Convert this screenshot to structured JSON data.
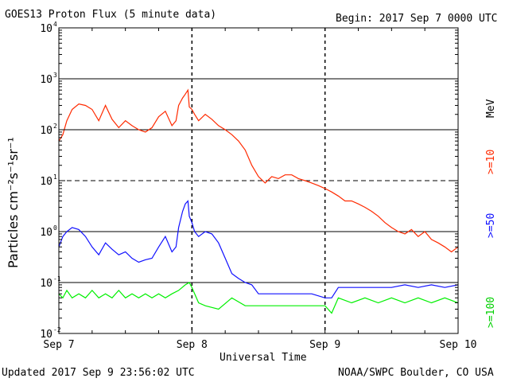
{
  "header": {
    "title": "GOES13 Proton Flux (5 minute data)",
    "begin": "Begin: 2017 Sep 7 0000 UTC"
  },
  "footer": {
    "updated": "Updated 2017 Sep  9 23:56:02 UTC",
    "source": "NOAA/SWPC Boulder, CO USA"
  },
  "chart_data": {
    "type": "line",
    "title": "GOES13 Proton Flux (5 minute data)",
    "xlabel": "Universal Time",
    "ylabel": "Particles cm⁻²s⁻¹sr⁻¹",
    "y_scale": "log",
    "ylim": [
      0.01,
      10000
    ],
    "xlim": [
      0,
      3
    ],
    "x_ticks": [
      {
        "value": 0,
        "label": "Sep 7"
      },
      {
        "value": 1,
        "label": "Sep 8"
      },
      {
        "value": 2,
        "label": "Sep 9"
      },
      {
        "value": 3,
        "label": "Sep 10"
      }
    ],
    "y_ticks": [
      {
        "value": 0.01,
        "base": "10",
        "exp": "-2"
      },
      {
        "value": 0.1,
        "base": "10",
        "exp": "-1"
      },
      {
        "value": 1,
        "base": "10",
        "exp": "0"
      },
      {
        "value": 10,
        "base": "10",
        "exp": "1"
      },
      {
        "value": 100,
        "base": "10",
        "exp": "2"
      },
      {
        "value": 1000,
        "base": "10",
        "exp": "3"
      },
      {
        "value": 10000,
        "base": "10",
        "exp": "4"
      }
    ],
    "reference_lines": [
      {
        "value": 1000,
        "style": "solid"
      },
      {
        "value": 100,
        "style": "solid"
      },
      {
        "value": 10,
        "style": "dashed"
      },
      {
        "value": 1,
        "style": "solid"
      },
      {
        "value": 0.1,
        "style": "solid"
      }
    ],
    "series": [
      {
        "name": ">=10",
        "color": "#ff2a00",
        "x": [
          0,
          0.03,
          0.06,
          0.1,
          0.15,
          0.2,
          0.25,
          0.3,
          0.35,
          0.4,
          0.45,
          0.5,
          0.55,
          0.6,
          0.65,
          0.7,
          0.75,
          0.8,
          0.85,
          0.88,
          0.9,
          0.93,
          0.95,
          0.97,
          0.98,
          1.0,
          1.02,
          1.05,
          1.1,
          1.15,
          1.2,
          1.25,
          1.3,
          1.35,
          1.4,
          1.45,
          1.5,
          1.55,
          1.6,
          1.65,
          1.7,
          1.75,
          1.8,
          1.85,
          1.9,
          1.95,
          2.0,
          2.05,
          2.1,
          2.15,
          2.2,
          2.25,
          2.3,
          2.35,
          2.4,
          2.45,
          2.5,
          2.55,
          2.6,
          2.65,
          2.7,
          2.75,
          2.8,
          2.85,
          2.9,
          2.95,
          3.0
        ],
        "y": [
          60,
          80,
          150,
          250,
          320,
          300,
          250,
          150,
          300,
          160,
          110,
          150,
          120,
          100,
          90,
          110,
          180,
          230,
          120,
          150,
          300,
          420,
          500,
          600,
          280,
          250,
          200,
          150,
          200,
          160,
          120,
          100,
          80,
          60,
          40,
          20,
          12,
          9,
          12,
          11,
          13,
          13,
          11,
          10,
          9,
          8,
          7,
          6,
          5,
          4,
          4,
          3.5,
          3,
          2.5,
          2,
          1.5,
          1.2,
          1,
          0.9,
          1.1,
          0.8,
          1,
          0.7,
          0.6,
          0.5,
          0.4,
          0.5
        ]
      },
      {
        "name": ">=50",
        "color": "#1010ff",
        "x": [
          0,
          0.03,
          0.06,
          0.1,
          0.15,
          0.2,
          0.25,
          0.3,
          0.35,
          0.4,
          0.45,
          0.5,
          0.55,
          0.6,
          0.65,
          0.7,
          0.75,
          0.8,
          0.85,
          0.88,
          0.9,
          0.93,
          0.95,
          0.97,
          0.98,
          1.0,
          1.02,
          1.05,
          1.1,
          1.15,
          1.2,
          1.25,
          1.3,
          1.35,
          1.4,
          1.45,
          1.5,
          1.6,
          1.7,
          1.8,
          1.9,
          2.0,
          2.05,
          2.1,
          2.2,
          2.3,
          2.4,
          2.5,
          2.6,
          2.7,
          2.8,
          2.9,
          3.0
        ],
        "y": [
          0.5,
          0.8,
          1.0,
          1.2,
          1.1,
          0.8,
          0.5,
          0.35,
          0.6,
          0.45,
          0.35,
          0.4,
          0.3,
          0.25,
          0.28,
          0.3,
          0.5,
          0.8,
          0.4,
          0.5,
          1.2,
          2.5,
          3.5,
          4,
          2,
          1.5,
          1.0,
          0.8,
          1.0,
          0.9,
          0.6,
          0.3,
          0.15,
          0.12,
          0.1,
          0.09,
          0.06,
          0.06,
          0.06,
          0.06,
          0.06,
          0.05,
          0.05,
          0.08,
          0.08,
          0.08,
          0.08,
          0.08,
          0.09,
          0.08,
          0.09,
          0.08,
          0.09
        ]
      },
      {
        "name": ">=100",
        "color": "#00f000",
        "x": [
          0,
          0.03,
          0.06,
          0.1,
          0.15,
          0.2,
          0.25,
          0.3,
          0.35,
          0.4,
          0.45,
          0.5,
          0.55,
          0.6,
          0.65,
          0.7,
          0.75,
          0.8,
          0.85,
          0.9,
          0.95,
          0.98,
          1.0,
          1.05,
          1.1,
          1.2,
          1.3,
          1.4,
          1.5,
          1.6,
          1.7,
          1.8,
          1.9,
          2.0,
          2.05,
          2.1,
          2.2,
          2.3,
          2.4,
          2.5,
          2.6,
          2.7,
          2.8,
          2.9,
          3.0
        ],
        "y": [
          0.06,
          0.05,
          0.07,
          0.05,
          0.06,
          0.05,
          0.07,
          0.05,
          0.06,
          0.05,
          0.07,
          0.05,
          0.06,
          0.05,
          0.06,
          0.05,
          0.06,
          0.05,
          0.06,
          0.07,
          0.09,
          0.1,
          0.08,
          0.04,
          0.035,
          0.03,
          0.05,
          0.035,
          0.035,
          0.035,
          0.035,
          0.035,
          0.035,
          0.035,
          0.025,
          0.05,
          0.04,
          0.05,
          0.04,
          0.05,
          0.04,
          0.05,
          0.04,
          0.05,
          0.04
        ]
      }
    ],
    "legend": {
      "placement": "right, rotated vertically",
      "unit": "MeV"
    }
  }
}
